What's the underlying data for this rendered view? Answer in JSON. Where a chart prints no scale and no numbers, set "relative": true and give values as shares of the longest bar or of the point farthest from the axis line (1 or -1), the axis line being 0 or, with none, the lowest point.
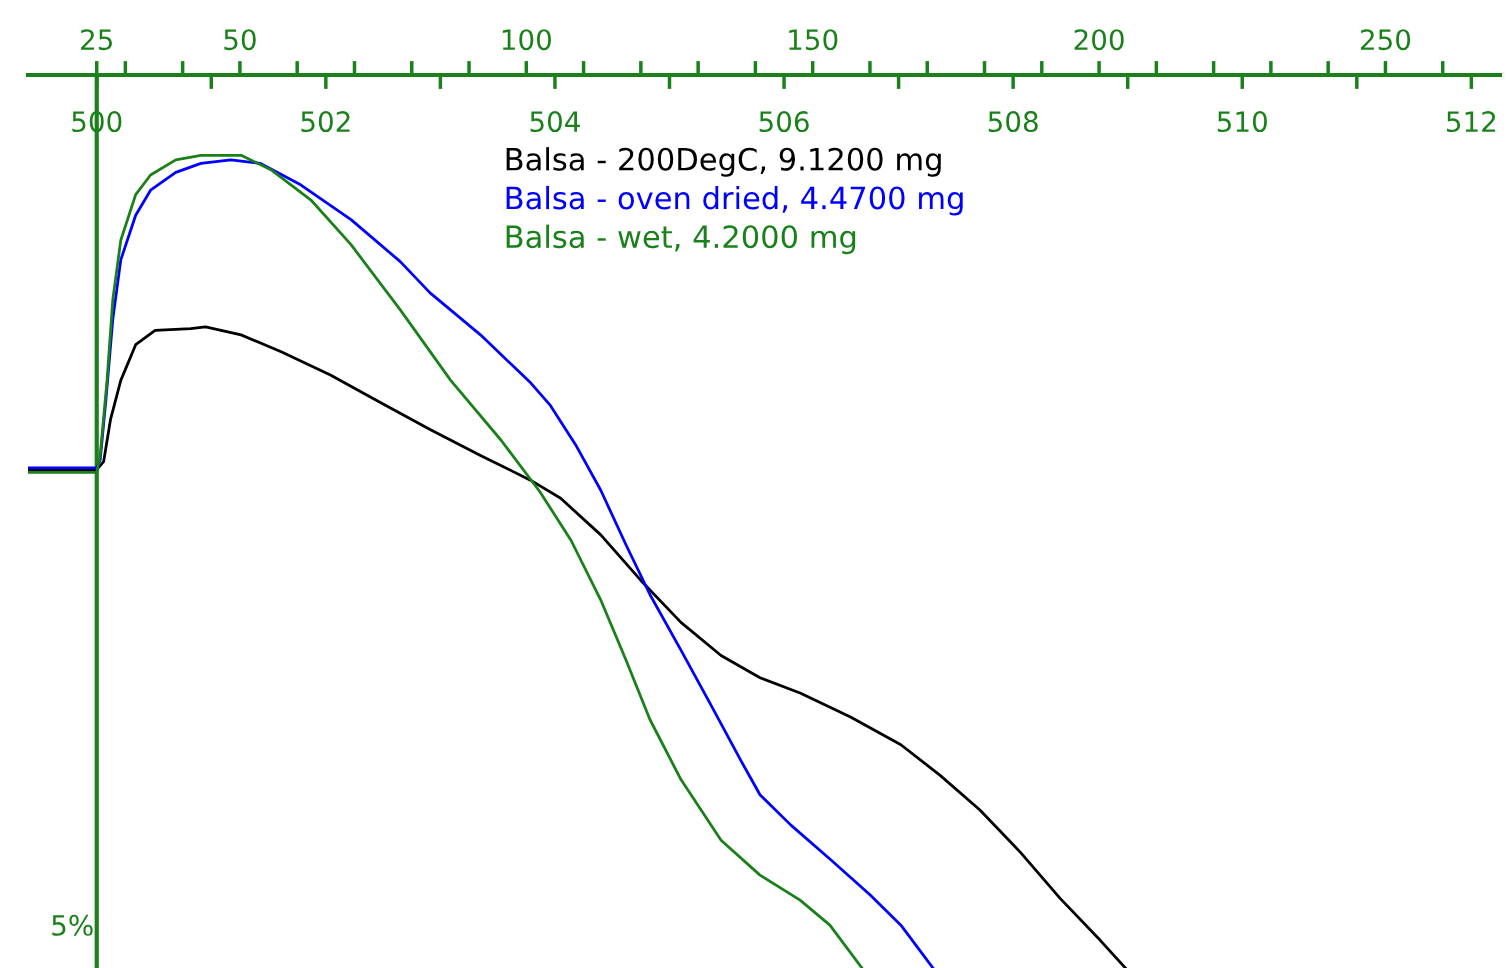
{
  "chart_data": {
    "type": "line",
    "relative": true,
    "xlim": [
      499.4,
      512.25
    ],
    "xticks": [
      500,
      {
        "value": 501,
        "label": null
      },
      502,
      {
        "value": 503,
        "label": null
      },
      504,
      {
        "value": 505,
        "label": null
      },
      506,
      {
        "value": 507,
        "label": null
      },
      508,
      {
        "value": 509,
        "label": null
      },
      510,
      {
        "value": 511,
        "label": null
      },
      512
    ],
    "x2lim": [
      13.0,
      270.0
    ],
    "x2ticks": [
      25,
      {
        "value": 30,
        "label": null
      },
      {
        "value": 40,
        "label": null
      },
      50,
      {
        "value": 60,
        "label": null
      },
      {
        "value": 70,
        "label": null
      },
      {
        "value": 80,
        "label": null
      },
      {
        "value": 90,
        "label": null
      },
      100,
      {
        "value": 110,
        "label": null
      },
      {
        "value": 120,
        "label": null
      },
      {
        "value": 130,
        "label": null
      },
      {
        "value": 140,
        "label": null
      },
      150,
      {
        "value": 160,
        "label": null
      },
      {
        "value": 170,
        "label": null
      },
      {
        "value": 180,
        "label": null
      },
      {
        "value": 190,
        "label": null
      },
      200,
      {
        "value": 210,
        "label": null
      },
      {
        "value": 220,
        "label": null
      },
      {
        "value": 230,
        "label": null
      },
      {
        "value": 240,
        "label": null
      },
      250,
      {
        "value": 260,
        "label": null
      }
    ],
    "legend": "top",
    "grid": false,
    "marker": "none",
    "line_style": "solid",
    "annotations": [
      "5%"
    ],
    "ref_lines": [
      {
        "axis": "x",
        "value": 500,
        "color": "#1a801a"
      }
    ],
    "series": [
      {
        "name": "Balsa - 200DegC, 9.1200 mg",
        "color": "#000000",
        "x": [
          499.41,
          500,
          500.06,
          500.12,
          500.21,
          500.34,
          500.51,
          500.82,
          500.95,
          501.26,
          501.61,
          502.04,
          502.48,
          502.91,
          503.35,
          503.79,
          504.05,
          504.4,
          504.75,
          505.1,
          505.45,
          505.79,
          506.14,
          506.58,
          507.02,
          507.36,
          507.71,
          508.06,
          508.41,
          508.76,
          508.98
        ],
        "values": [
          -0.442,
          -0.442,
          -0.433,
          -0.386,
          -0.342,
          -0.302,
          -0.286,
          -0.284,
          -0.282,
          -0.291,
          -0.31,
          -0.336,
          -0.367,
          -0.397,
          -0.426,
          -0.454,
          -0.474,
          -0.515,
          -0.566,
          -0.613,
          -0.65,
          -0.675,
          -0.692,
          -0.719,
          -0.75,
          -0.784,
          -0.823,
          -0.87,
          -0.922,
          -0.969,
          -1
        ]
      },
      {
        "name": "Balsa - oven dried, 4.4700 mg",
        "color": "#0000ff",
        "x": [
          499.41,
          500,
          500.03,
          500.08,
          500.14,
          500.21,
          500.34,
          500.47,
          500.69,
          500.91,
          501.17,
          501.43,
          501.78,
          502.22,
          502.65,
          502.91,
          503.35,
          503.79,
          503.96,
          504.18,
          504.4,
          504.62,
          504.83,
          505.1,
          505.36,
          505.62,
          505.79,
          506.06,
          506.41,
          506.75,
          507.02,
          507.3
        ],
        "values": [
          -0.44,
          -0.44,
          -0.431,
          -0.364,
          -0.274,
          -0.207,
          -0.157,
          -0.129,
          -0.109,
          -0.099,
          -0.095,
          -0.099,
          -0.123,
          -0.162,
          -0.209,
          -0.244,
          -0.291,
          -0.345,
          -0.37,
          -0.414,
          -0.465,
          -0.526,
          -0.582,
          -0.644,
          -0.705,
          -0.767,
          -0.806,
          -0.84,
          -0.879,
          -0.918,
          -0.952,
          -1
        ]
      },
      {
        "name": "Balsa - wet, 4.2000 mg",
        "color": "#1a801a",
        "x": [
          499.41,
          500,
          500.03,
          500.09,
          500.14,
          500.21,
          500.34,
          500.47,
          500.69,
          500.91,
          501.26,
          501.52,
          501.87,
          502.22,
          502.65,
          503.09,
          503.53,
          503.87,
          504.14,
          504.4,
          504.62,
          504.83,
          505.1,
          505.45,
          505.79,
          506.14,
          506.4,
          506.68
        ],
        "values": [
          -0.445,
          -0.445,
          -0.426,
          -0.342,
          -0.252,
          -0.185,
          -0.134,
          -0.112,
          -0.095,
          -0.09,
          -0.09,
          -0.106,
          -0.14,
          -0.19,
          -0.263,
          -0.342,
          -0.409,
          -0.467,
          -0.521,
          -0.588,
          -0.655,
          -0.722,
          -0.789,
          -0.857,
          -0.896,
          -0.924,
          -0.952,
          -1
        ]
      }
    ]
  }
}
